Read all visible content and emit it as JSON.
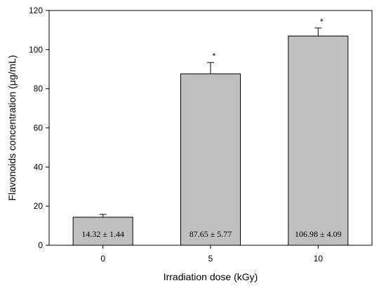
{
  "chart_data": {
    "type": "bar",
    "title": "",
    "xlabel": "Irradiation dose (kGy)",
    "ylabel": "Flavonoids concentration (μg/mL)",
    "categories": [
      "0",
      "5",
      "10"
    ],
    "values": [
      14.32,
      87.65,
      106.98
    ],
    "errors": [
      1.44,
      5.77,
      4.09
    ],
    "value_labels": [
      "14.32 ± 1.44",
      "87.65 ± 5.77",
      "106.98 ± 4.09"
    ],
    "significance": [
      "",
      "*",
      "*"
    ],
    "ylim": [
      0,
      120
    ],
    "yticks": [
      0,
      20,
      40,
      60,
      80,
      100,
      120
    ],
    "bar_color": "#c0c0c0",
    "grid": false,
    "legend": "none"
  }
}
